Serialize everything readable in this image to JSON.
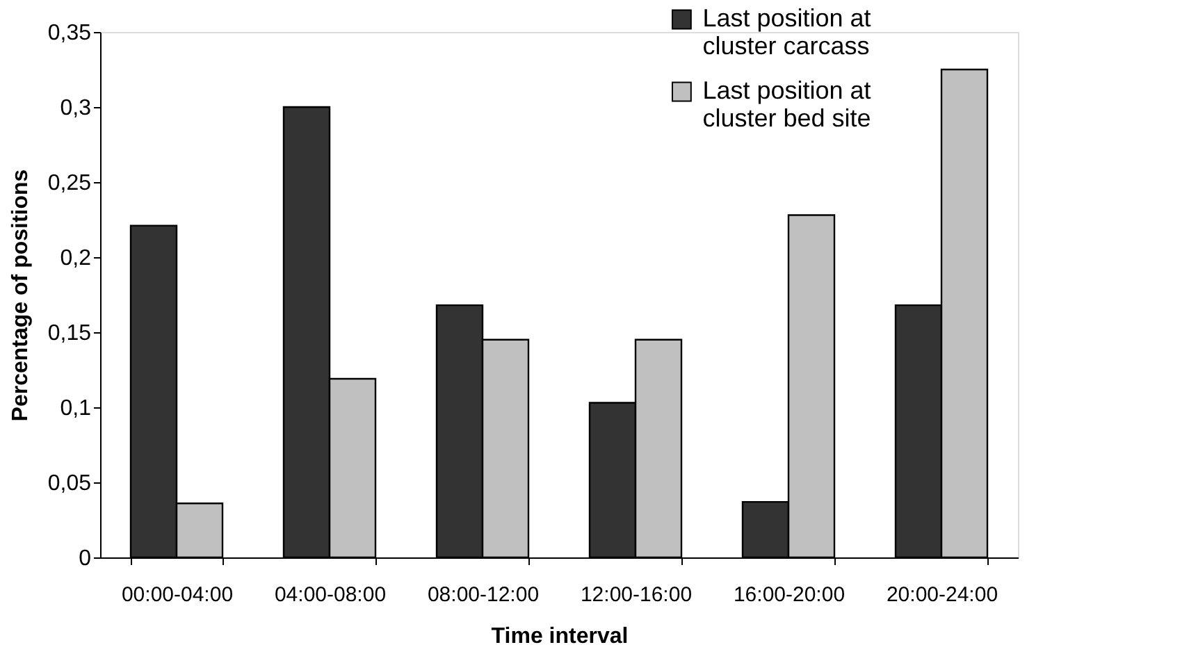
{
  "chart_data": {
    "type": "bar",
    "xlabel": "Time interval",
    "ylabel": "Percentage of positions",
    "categories": [
      "00:00-04:00",
      "04:00-08:00",
      "08:00-12:00",
      "12:00-16:00",
      "16:00-20:00",
      "20:00-24:00"
    ],
    "series": [
      {
        "name": "Last position at cluster carcass",
        "color": "#333333",
        "values": [
          0.221,
          0.3,
          0.168,
          0.103,
          0.037,
          0.168
        ]
      },
      {
        "name": "Last position at cluster bed site",
        "color": "#c0c0c0",
        "values": [
          0.036,
          0.119,
          0.145,
          0.145,
          0.228,
          0.325
        ]
      }
    ],
    "ylim": [
      0,
      0.35
    ],
    "yticks": [
      {
        "value": 0,
        "label": "0"
      },
      {
        "value": 0.05,
        "label": "0,05"
      },
      {
        "value": 0.1,
        "label": "0,1"
      },
      {
        "value": 0.15,
        "label": "0,15"
      },
      {
        "value": 0.2,
        "label": "0,2"
      },
      {
        "value": 0.25,
        "label": "0,25"
      },
      {
        "value": 0.3,
        "label": "0,3"
      },
      {
        "value": 0.35,
        "label": "0,35"
      }
    ],
    "grid": false,
    "legend": "top"
  }
}
